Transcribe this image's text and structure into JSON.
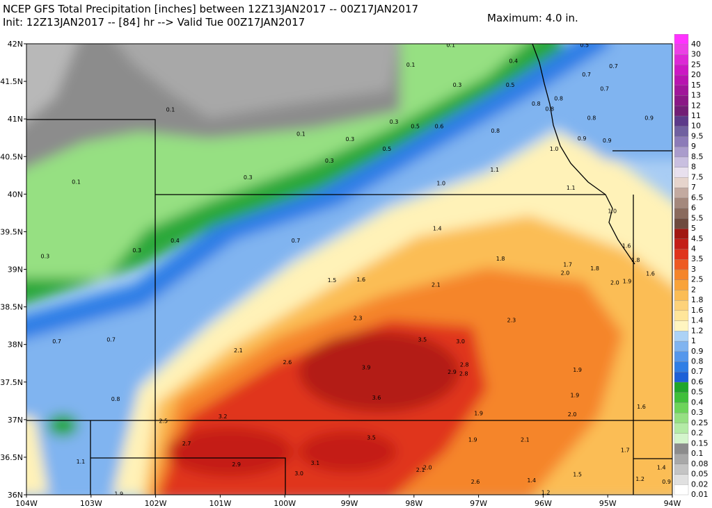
{
  "header": {
    "title_line1": "NCEP GFS Total Precipitation [inches] between 12Z13JAN2017 -- 00Z17JAN2017",
    "title_line2": "Init: 12Z13JAN2017 -- [84] hr --> Valid Tue 00Z17JAN2017",
    "maximum": "Maximum: 4.0 in."
  },
  "map": {
    "lonlim": [
      -104,
      -94
    ],
    "latlim": [
      36,
      42
    ],
    "lonticks": [
      {
        "value": -104,
        "label": "104W"
      },
      {
        "value": -103,
        "label": "103W"
      },
      {
        "value": -102,
        "label": "102W"
      },
      {
        "value": -101,
        "label": "101W"
      },
      {
        "value": -100,
        "label": "100W"
      },
      {
        "value": -99,
        "label": "99W"
      },
      {
        "value": -98,
        "label": "98W"
      },
      {
        "value": -97,
        "label": "97W"
      },
      {
        "value": -96,
        "label": "96W"
      },
      {
        "value": -95,
        "label": "95W"
      },
      {
        "value": -94,
        "label": "94W"
      }
    ],
    "latticks": [
      {
        "value": 42,
        "label": "42N"
      },
      {
        "value": 41.5,
        "label": "41.5N"
      },
      {
        "value": 41,
        "label": "41N"
      },
      {
        "value": 40.5,
        "label": "40.5N"
      },
      {
        "value": 40,
        "label": "40N"
      },
      {
        "value": 39.5,
        "label": "39.5N"
      },
      {
        "value": 39,
        "label": "39N"
      },
      {
        "value": 38.5,
        "label": "38.5N"
      },
      {
        "value": 38,
        "label": "38N"
      },
      {
        "value": 37.5,
        "label": "37.5N"
      },
      {
        "value": 37,
        "label": "37N"
      },
      {
        "value": 36.5,
        "label": "36.5N"
      },
      {
        "value": 36,
        "label": "36N"
      }
    ],
    "labels": [
      {
        "text": "0.1",
        "lon": -97.43,
        "lat": 41.98
      },
      {
        "text": "0.5",
        "lon": -95.36,
        "lat": 41.98
      },
      {
        "text": "0.4",
        "lon": -96.46,
        "lat": 41.77
      },
      {
        "text": "0.1",
        "lon": -98.05,
        "lat": 41.72
      },
      {
        "text": "0.7",
        "lon": -95.33,
        "lat": 41.59
      },
      {
        "text": "0.7",
        "lon": -94.91,
        "lat": 41.7
      },
      {
        "text": "0.3",
        "lon": -97.33,
        "lat": 41.45
      },
      {
        "text": "0.5",
        "lon": -96.51,
        "lat": 41.45
      },
      {
        "text": "0.7",
        "lon": -95.05,
        "lat": 41.4
      },
      {
        "text": "0.8",
        "lon": -96.11,
        "lat": 41.2
      },
      {
        "text": "0.8",
        "lon": -95.9,
        "lat": 41.13
      },
      {
        "text": "0.8",
        "lon": -95.76,
        "lat": 41.27
      },
      {
        "text": "0.1",
        "lon": -101.77,
        "lat": 41.12
      },
      {
        "text": "0.8",
        "lon": -95.25,
        "lat": 41.01
      },
      {
        "text": "0.9",
        "lon": -94.36,
        "lat": 41.01
      },
      {
        "text": "0.3",
        "lon": -98.31,
        "lat": 40.96
      },
      {
        "text": "0.5",
        "lon": -97.98,
        "lat": 40.9
      },
      {
        "text": "0.6",
        "lon": -97.61,
        "lat": 40.9
      },
      {
        "text": "0.8",
        "lon": -96.74,
        "lat": 40.84
      },
      {
        "text": "0.1",
        "lon": -99.75,
        "lat": 40.8
      },
      {
        "text": "0.3",
        "lon": -98.99,
        "lat": 40.73
      },
      {
        "text": "0.9",
        "lon": -95.4,
        "lat": 40.74
      },
      {
        "text": "0.9",
        "lon": -95.01,
        "lat": 40.71
      },
      {
        "text": "0.5",
        "lon": -98.42,
        "lat": 40.6
      },
      {
        "text": "1.0",
        "lon": -95.83,
        "lat": 40.6
      },
      {
        "text": "0.3",
        "lon": -99.31,
        "lat": 40.44
      },
      {
        "text": "1.1",
        "lon": -96.75,
        "lat": 40.32
      },
      {
        "text": "0.3",
        "lon": -100.57,
        "lat": 40.22
      },
      {
        "text": "0.1",
        "lon": -103.23,
        "lat": 40.16
      },
      {
        "text": "1.0",
        "lon": -97.58,
        "lat": 40.14
      },
      {
        "text": "1.1",
        "lon": -95.57,
        "lat": 40.08
      },
      {
        "text": "1.0",
        "lon": -94.93,
        "lat": 39.77
      },
      {
        "text": "1.4",
        "lon": -97.64,
        "lat": 39.54
      },
      {
        "text": "0.7",
        "lon": -99.83,
        "lat": 39.38
      },
      {
        "text": "0.4",
        "lon": -101.7,
        "lat": 39.38
      },
      {
        "text": "1.6",
        "lon": -94.71,
        "lat": 39.31
      },
      {
        "text": "0.3",
        "lon": -102.29,
        "lat": 39.25
      },
      {
        "text": "0.3",
        "lon": -103.71,
        "lat": 39.17
      },
      {
        "text": "1.8",
        "lon": -96.66,
        "lat": 39.14
      },
      {
        "text": "1.8",
        "lon": -94.57,
        "lat": 39.12
      },
      {
        "text": "1.7",
        "lon": -95.62,
        "lat": 39.06
      },
      {
        "text": "1.8",
        "lon": -95.2,
        "lat": 39.01
      },
      {
        "text": "2.0",
        "lon": -95.66,
        "lat": 38.95
      },
      {
        "text": "1.6",
        "lon": -94.34,
        "lat": 38.94
      },
      {
        "text": "1.5",
        "lon": -99.27,
        "lat": 38.85
      },
      {
        "text": "1.6",
        "lon": -98.82,
        "lat": 38.86
      },
      {
        "text": "2.0",
        "lon": -94.89,
        "lat": 38.82
      },
      {
        "text": "1.9",
        "lon": -94.7,
        "lat": 38.84
      },
      {
        "text": "2.1",
        "lon": -97.66,
        "lat": 38.79
      },
      {
        "text": "2.3",
        "lon": -98.87,
        "lat": 38.35
      },
      {
        "text": "2.3",
        "lon": -96.49,
        "lat": 38.32
      },
      {
        "text": "0.7",
        "lon": -103.53,
        "lat": 38.04
      },
      {
        "text": "0.7",
        "lon": -102.69,
        "lat": 38.06
      },
      {
        "text": "3.5",
        "lon": -97.87,
        "lat": 38.06
      },
      {
        "text": "3.0",
        "lon": -97.28,
        "lat": 38.04
      },
      {
        "text": "2.1",
        "lon": -100.72,
        "lat": 37.92
      },
      {
        "text": "2.6",
        "lon": -99.96,
        "lat": 37.76
      },
      {
        "text": "3.9",
        "lon": -98.74,
        "lat": 37.69
      },
      {
        "text": "2.8",
        "lon": -97.22,
        "lat": 37.73
      },
      {
        "text": "2.9",
        "lon": -97.41,
        "lat": 37.63
      },
      {
        "text": "2.8",
        "lon": -97.23,
        "lat": 37.61
      },
      {
        "text": "1.9",
        "lon": -95.47,
        "lat": 37.66
      },
      {
        "text": "3.6",
        "lon": -98.58,
        "lat": 37.29
      },
      {
        "text": "1.9",
        "lon": -95.51,
        "lat": 37.32
      },
      {
        "text": "0.8",
        "lon": -102.62,
        "lat": 37.27
      },
      {
        "text": "1.6",
        "lon": -94.48,
        "lat": 37.17
      },
      {
        "text": "1.9",
        "lon": -97.0,
        "lat": 37.08
      },
      {
        "text": "2.0",
        "lon": -95.55,
        "lat": 37.07
      },
      {
        "text": "2.5",
        "lon": -101.88,
        "lat": 36.98
      },
      {
        "text": "3.2",
        "lon": -100.96,
        "lat": 37.04
      },
      {
        "text": "3.5",
        "lon": -98.66,
        "lat": 36.76
      },
      {
        "text": "1.9",
        "lon": -97.09,
        "lat": 36.73
      },
      {
        "text": "2.1",
        "lon": -96.28,
        "lat": 36.73
      },
      {
        "text": "2.7",
        "lon": -101.52,
        "lat": 36.68
      },
      {
        "text": "1.7",
        "lon": -94.73,
        "lat": 36.59
      },
      {
        "text": "1.1",
        "lon": -103.16,
        "lat": 36.44
      },
      {
        "text": "2.9",
        "lon": -100.75,
        "lat": 36.4
      },
      {
        "text": "3.1",
        "lon": -99.53,
        "lat": 36.42
      },
      {
        "text": "2.1",
        "lon": -97.9,
        "lat": 36.33
      },
      {
        "text": "2.0",
        "lon": -97.79,
        "lat": 36.36
      },
      {
        "text": "1.4",
        "lon": -94.17,
        "lat": 36.36
      },
      {
        "text": "1.5",
        "lon": -95.47,
        "lat": 36.27
      },
      {
        "text": "3.0",
        "lon": -99.78,
        "lat": 36.28
      },
      {
        "text": "2.6",
        "lon": -97.05,
        "lat": 36.17
      },
      {
        "text": "1.4",
        "lon": -96.18,
        "lat": 36.19
      },
      {
        "text": "1.2",
        "lon": -94.5,
        "lat": 36.21
      },
      {
        "text": "0.9",
        "lon": -94.09,
        "lat": 36.17
      },
      {
        "text": "1.9",
        "lon": -102.57,
        "lat": 36.01
      },
      {
        "text": "1.2",
        "lon": -95.96,
        "lat": 36.03
      }
    ]
  },
  "colorbar": {
    "levels": [
      0.01,
      0.02,
      0.05,
      0.08,
      0.1,
      0.15,
      0.2,
      0.25,
      0.3,
      0.4,
      0.5,
      0.6,
      0.7,
      0.8,
      0.9,
      1,
      1.2,
      1.4,
      1.6,
      1.8,
      2,
      2.5,
      3,
      3.5,
      4,
      4.5,
      5,
      5.5,
      6,
      6.5,
      7,
      7.5,
      8,
      8.5,
      9,
      9.5,
      10,
      11,
      12,
      13,
      15,
      20,
      25,
      30,
      40
    ],
    "colors": [
      "#ffffff",
      "#e0e0e0",
      "#c4c4c4",
      "#a8a8a8",
      "#8c8c8c",
      "#d4f5cc",
      "#b4eba6",
      "#96e082",
      "#6dd45a",
      "#3fbf3a",
      "#1fa52a",
      "#1c60d8",
      "#2f7ee6",
      "#5597ec",
      "#80b4f0",
      "#acd2f6",
      "#fff5c0",
      "#ffe69a",
      "#fdd27a",
      "#fbbd55",
      "#f9a33a",
      "#f5852a",
      "#ee5a22",
      "#e0341c",
      "#c41e17",
      "#a21812",
      "#6e4a3e",
      "#8a6a5d",
      "#a4887c",
      "#c3aaa0",
      "#e6d4cc",
      "#e8e0ee",
      "#c9bfe0",
      "#aa9ccc",
      "#8c7bb8",
      "#7060a0",
      "#5c3a8a",
      "#721e76",
      "#8a1886",
      "#a0169a",
      "#b814b0",
      "#cc18c4",
      "#dd28d6",
      "#ec40e6",
      "#ff33ff"
    ]
  }
}
